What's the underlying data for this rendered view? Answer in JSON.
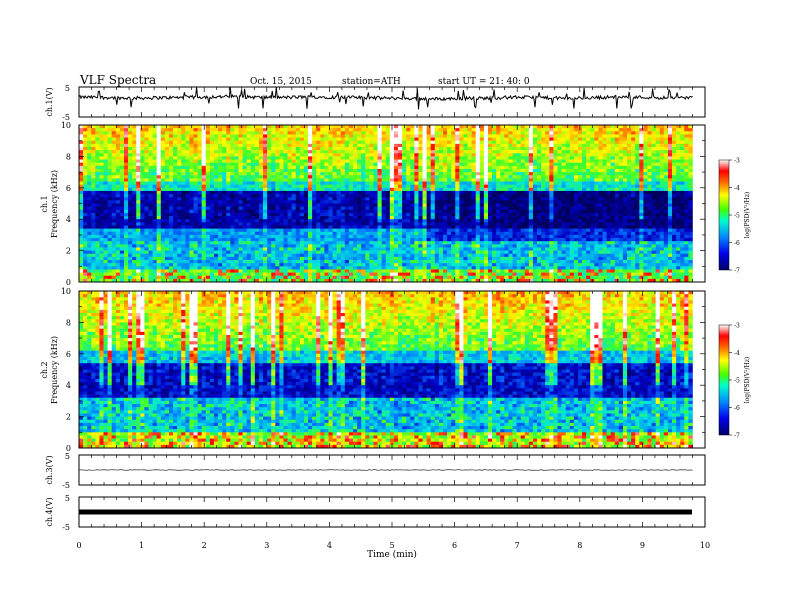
{
  "header": {
    "title": "VLF  Spectra",
    "date": "Oct. 15, 2015",
    "station": "station=ATH",
    "start": "start  UT  =   21: 40: 0"
  },
  "chart_data": [
    {
      "type": "line",
      "panel": "ch1-waveform",
      "ylabel": "ch.1(V)",
      "ylim": [
        -5,
        5
      ],
      "yticks": [
        "5",
        "-5"
      ],
      "xlim": [
        0,
        10
      ],
      "series": [
        {
          "values": [
            1.6,
            1.5,
            1.3,
            1.4,
            1.5,
            1.7,
            1.8,
            1.6,
            1.5,
            1.7,
            1.6,
            1.5,
            1.3,
            1.2,
            1.0,
            1.2,
            1.3,
            1.6,
            1.5,
            1.2,
            1.4,
            1.7,
            1.6,
            1.4,
            1.5
          ]
        }
      ]
    },
    {
      "type": "heatmap",
      "panel": "ch1-spectrogram",
      "ylabel": "ch.1\nFrequency  (kHz)",
      "ylim": [
        0,
        10
      ],
      "yticks": [
        "0",
        "2",
        "4",
        "6",
        "8",
        "10"
      ],
      "xlim": [
        0,
        10
      ],
      "colorbar": {
        "label": "log(PSD(V²/Hz)",
        "ticks": [
          "-3",
          "-4",
          "-5",
          "-6",
          "-7"
        ],
        "range": [
          -7,
          -3
        ]
      }
    },
    {
      "type": "heatmap",
      "panel": "ch2-spectrogram",
      "ylabel": "ch.2\nFrequency  (kHz)",
      "ylim": [
        0,
        10
      ],
      "yticks": [
        "0",
        "2",
        "4",
        "6",
        "8",
        "10"
      ],
      "xlim": [
        0,
        10
      ],
      "colorbar": {
        "label": "log(PSD(V²/Hz)",
        "ticks": [
          "-3",
          "-4",
          "-5",
          "-6",
          "-7"
        ],
        "range": [
          -7,
          -3
        ]
      }
    },
    {
      "type": "line",
      "panel": "ch3-waveform",
      "ylabel": "ch.3(V)",
      "ylim": [
        -5,
        5
      ],
      "yticks": [
        "5",
        "-5"
      ],
      "xlim": [
        0,
        10
      ],
      "series": [
        {
          "values": [
            0,
            0
          ]
        }
      ]
    },
    {
      "type": "line",
      "panel": "ch4-waveform",
      "ylabel": "ch.4(V)",
      "ylim": [
        -5,
        5
      ],
      "yticks": [
        "5",
        "-5"
      ],
      "xlim": [
        0,
        10
      ],
      "series": [
        {
          "values": [
            0,
            0
          ]
        }
      ]
    }
  ],
  "xaxis": {
    "label": "Time  (min)",
    "ticks": [
      "0",
      "1",
      "2",
      "3",
      "4",
      "5",
      "6",
      "7",
      "8",
      "9",
      "10"
    ],
    "data_end": 9.8
  },
  "colormap": [
    "#000066",
    "#0000cc",
    "#0055ff",
    "#00bbff",
    "#00ffaa",
    "#44ff00",
    "#ffff00",
    "#ff8800",
    "#ff0000",
    "#ffffff"
  ]
}
